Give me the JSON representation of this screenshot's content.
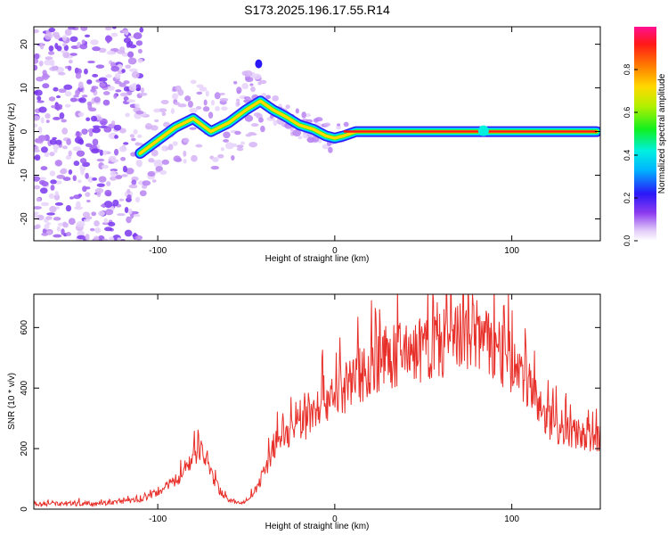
{
  "title": "S173.2025.196.17.55.R14",
  "chart_data": [
    {
      "type": "heatmap",
      "xlabel": "Height of straight line (km)",
      "ylabel": "Frequency (Hz)",
      "xlim": [
        -170,
        150
      ],
      "ylim": [
        -25,
        24
      ],
      "xticks": [
        -100,
        0,
        100
      ],
      "yticks": [
        -20,
        -10,
        0,
        10,
        20
      ],
      "colorbar": {
        "label": "Normalized spectral amplitude",
        "range": [
          0,
          1
        ],
        "ticks": [
          "0.0",
          "0.2",
          "0.4",
          "0.6",
          "0.8"
        ]
      },
      "ridge": {
        "x": [
          -110,
          -100,
          -90,
          -80,
          -70,
          -60,
          -50,
          -42,
          -35,
          -28,
          -20,
          -12,
          -5,
          0,
          5,
          12,
          20,
          40,
          60,
          80,
          100,
          120,
          148
        ],
        "y": [
          -5,
          -2,
          1,
          3,
          0,
          2,
          5,
          7,
          5,
          3.5,
          1.5,
          0.5,
          -1,
          -1.5,
          -1,
          0,
          0,
          0,
          0,
          0,
          0,
          0,
          0
        ]
      },
      "grid": false
    },
    {
      "type": "line",
      "xlabel": "Height of straight line (km)",
      "ylabel": "SNR (10 * v/v)",
      "xlim": [
        -170,
        150
      ],
      "ylim": [
        0,
        710
      ],
      "xticks": [
        -100,
        0,
        100
      ],
      "yticks": [
        0,
        200,
        400,
        600
      ],
      "color": "#e8302a",
      "envelope": {
        "x": [
          -170,
          -130,
          -110,
          -100,
          -95,
          -90,
          -85,
          -80,
          -77,
          -74,
          -70,
          -65,
          -60,
          -55,
          -50,
          -45,
          -40,
          -35,
          -30,
          -25,
          -20,
          -15,
          -10,
          -5,
          0,
          5,
          10,
          15,
          20,
          25,
          30,
          40,
          50,
          60,
          70,
          80,
          90,
          100,
          105,
          110,
          115,
          120,
          130,
          140,
          150
        ],
        "y": [
          15,
          20,
          30,
          55,
          75,
          95,
          120,
          170,
          200,
          180,
          120,
          60,
          30,
          20,
          25,
          60,
          120,
          200,
          240,
          260,
          280,
          300,
          340,
          370,
          380,
          390,
          420,
          450,
          470,
          490,
          500,
          510,
          520,
          540,
          560,
          560,
          520,
          480,
          440,
          400,
          340,
          300,
          260,
          240,
          230
        ]
      },
      "grid": false
    }
  ]
}
